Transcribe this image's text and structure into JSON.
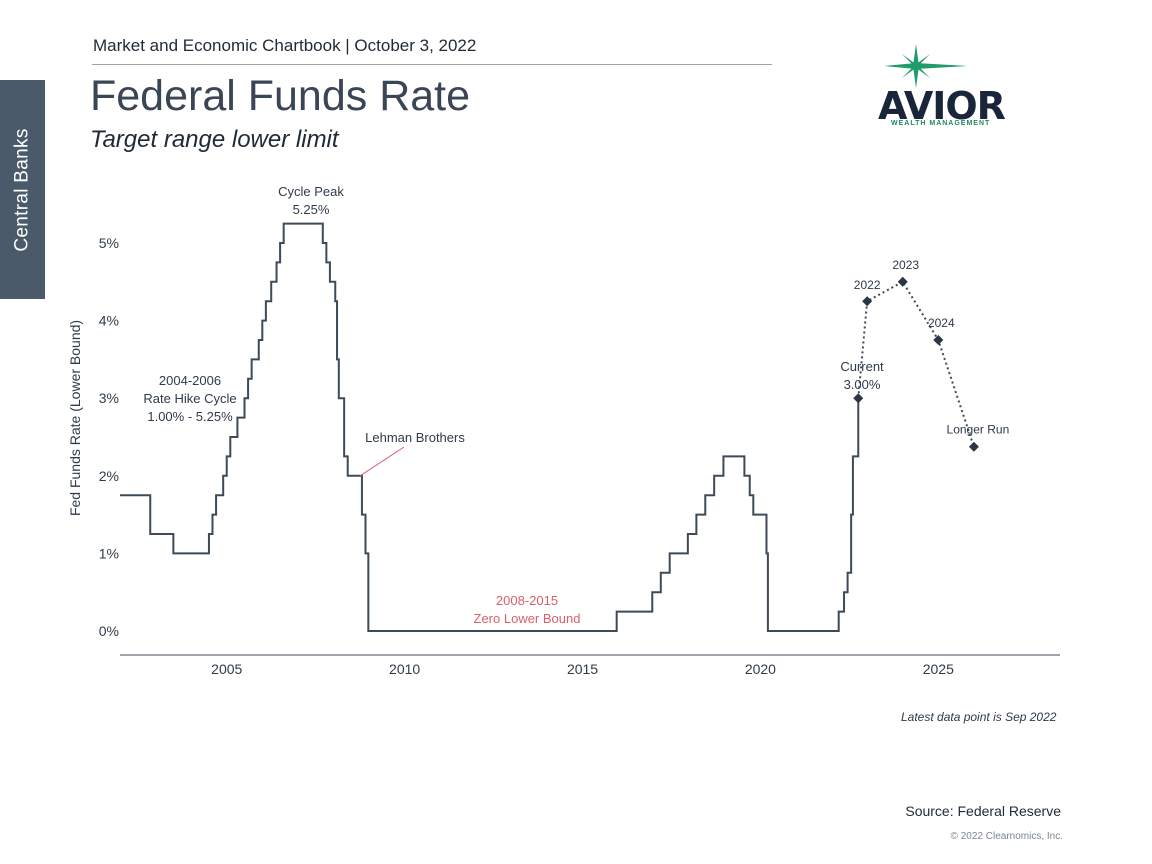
{
  "side_tab": "Central Banks",
  "header": {
    "chartbook": "Market and Economic Chartbook | October 3, 2022",
    "title": "Federal Funds Rate",
    "subtitle": "Target range lower limit"
  },
  "logo": {
    "word": "AVIOR",
    "sub": "WEALTH MANAGEMENT",
    "colors": {
      "word": "#18253a",
      "star": "#1f9c6a"
    }
  },
  "colors": {
    "line": "#3d4a58",
    "annotation_red": "#d9606a",
    "axis": "#3d4a58",
    "text": "#2f3b4a"
  },
  "footnote": "Latest data point is Sep 2022",
  "source": "Source: Federal Reserve",
  "copyright": "© 2022 Clearnomics, Inc.",
  "chart_data": {
    "type": "line",
    "ylabel": "Fed Funds Rate (Lower Bound)",
    "xlim": [
      2002.0,
      2027.4
    ],
    "ylim": [
      -0.3,
      5.6
    ],
    "yticks": [
      0,
      1,
      2,
      3,
      4,
      5
    ],
    "ytick_labels": [
      "0%",
      "1%",
      "2%",
      "3%",
      "4%",
      "5%"
    ],
    "xticks": [
      2005,
      2010,
      2015,
      2020,
      2025
    ],
    "xtick_labels": [
      "2005",
      "2010",
      "2015",
      "2020",
      "2025"
    ],
    "series": [
      {
        "style": "step",
        "points": [
          [
            2002.0,
            1.75
          ],
          [
            2002.85,
            1.25
          ],
          [
            2003.5,
            1.0
          ],
          [
            2004.5,
            1.25
          ],
          [
            2004.6,
            1.5
          ],
          [
            2004.7,
            1.75
          ],
          [
            2004.9,
            2.0
          ],
          [
            2005.0,
            2.25
          ],
          [
            2005.1,
            2.5
          ],
          [
            2005.3,
            2.75
          ],
          [
            2005.5,
            3.0
          ],
          [
            2005.6,
            3.25
          ],
          [
            2005.7,
            3.5
          ],
          [
            2005.9,
            3.75
          ],
          [
            2006.0,
            4.0
          ],
          [
            2006.1,
            4.25
          ],
          [
            2006.25,
            4.5
          ],
          [
            2006.4,
            4.75
          ],
          [
            2006.5,
            5.0
          ],
          [
            2006.6,
            5.25
          ],
          [
            2007.7,
            5.0
          ],
          [
            2007.8,
            4.75
          ],
          [
            2007.9,
            4.5
          ],
          [
            2008.05,
            4.25
          ],
          [
            2008.1,
            3.5
          ],
          [
            2008.15,
            3.0
          ],
          [
            2008.3,
            2.25
          ],
          [
            2008.4,
            2.0
          ],
          [
            2008.8,
            1.5
          ],
          [
            2008.9,
            1.0
          ],
          [
            2008.98,
            0.0
          ],
          [
            2015.96,
            0.25
          ],
          [
            2016.96,
            0.5
          ],
          [
            2017.2,
            0.75
          ],
          [
            2017.45,
            1.0
          ],
          [
            2017.96,
            1.25
          ],
          [
            2018.2,
            1.5
          ],
          [
            2018.45,
            1.75
          ],
          [
            2018.7,
            2.0
          ],
          [
            2018.96,
            2.25
          ],
          [
            2019.55,
            2.0
          ],
          [
            2019.7,
            1.75
          ],
          [
            2019.8,
            1.5
          ],
          [
            2020.17,
            1.0
          ],
          [
            2020.21,
            0.0
          ],
          [
            2022.2,
            0.25
          ],
          [
            2022.35,
            0.5
          ],
          [
            2022.45,
            0.75
          ],
          [
            2022.55,
            1.5
          ],
          [
            2022.6,
            2.25
          ],
          [
            2022.75,
            3.0
          ]
        ]
      },
      {
        "style": "dotted-projection",
        "points": [
          [
            2022.75,
            3.0
          ],
          [
            2023.0,
            4.25
          ],
          [
            2024.0,
            4.5
          ],
          [
            2025.0,
            3.75
          ],
          [
            2026.0,
            2.375
          ]
        ],
        "labels": [
          "",
          "2022",
          "2023",
          "2024",
          "Longer Run"
        ]
      }
    ],
    "annotations": [
      {
        "lines": [
          "Cycle Peak",
          "5.25%"
        ],
        "color": "dark"
      },
      {
        "lines": [
          "2004-2006",
          "Rate Hike Cycle",
          "1.00% - 5.25%"
        ],
        "color": "dark"
      },
      {
        "lines": [
          "Lehman Brothers"
        ],
        "color": "dark",
        "leader_to": [
          2008.75,
          2.0
        ]
      },
      {
        "lines": [
          "2008-2015",
          "Zero Lower Bound"
        ],
        "color": "red"
      },
      {
        "lines": [
          "Current",
          "3.00%"
        ],
        "color": "dark"
      }
    ]
  }
}
